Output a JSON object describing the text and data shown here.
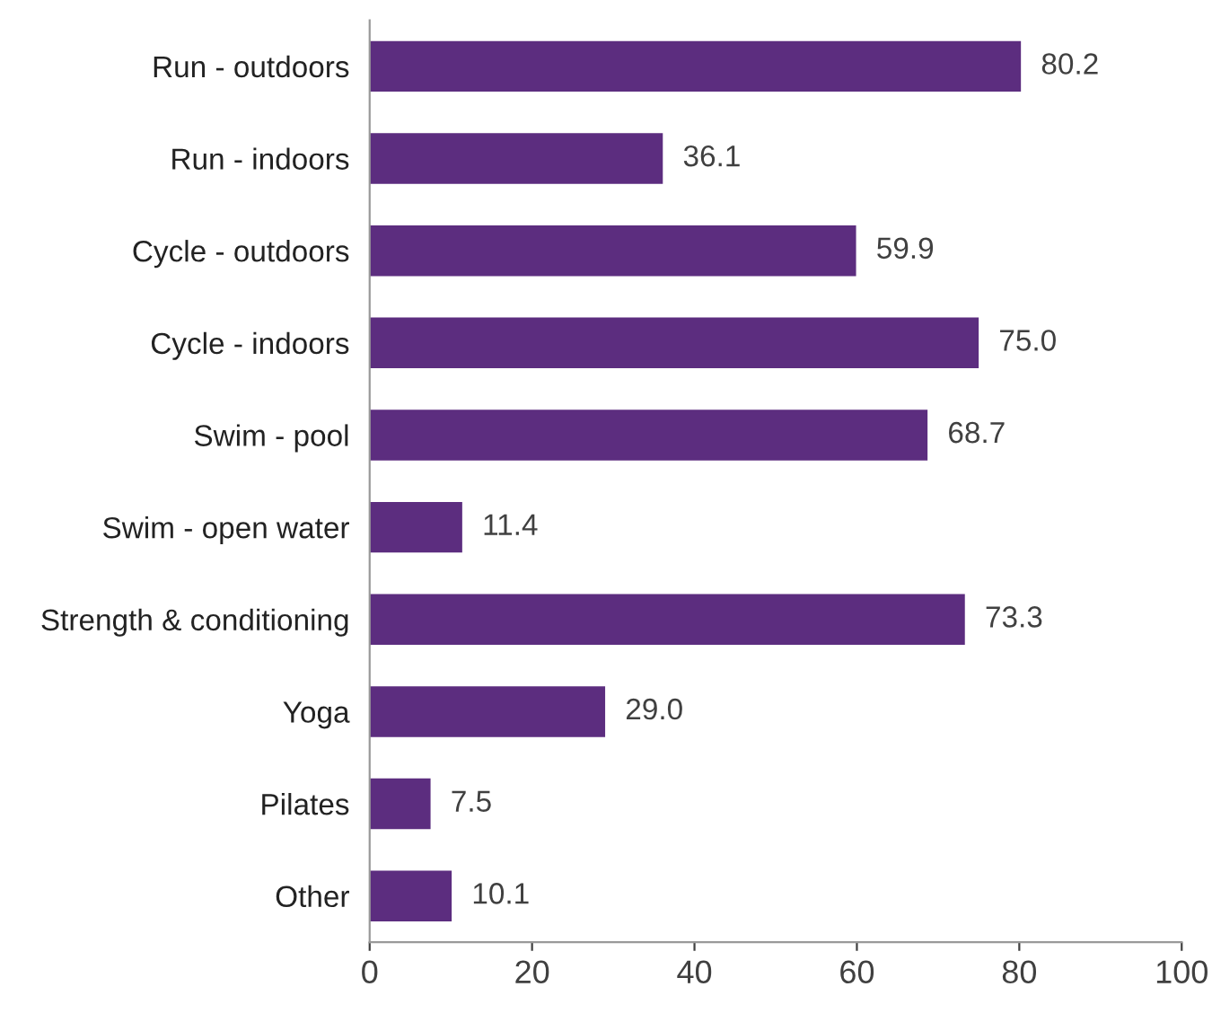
{
  "chart_data": {
    "type": "bar",
    "orientation": "horizontal",
    "categories": [
      "Run - outdoors",
      "Run - indoors",
      "Cycle - outdoors",
      "Cycle - indoors",
      "Swim - pool",
      "Swim - open water",
      "Strength & conditioning",
      "Yoga",
      "Pilates",
      "Other"
    ],
    "values": [
      80.2,
      36.1,
      59.9,
      75.0,
      68.7,
      11.4,
      73.3,
      29.0,
      7.5,
      10.1
    ],
    "value_labels": [
      "80.2",
      "36.1",
      "59.9",
      "75.0",
      "68.7",
      "11.4",
      "73.3",
      "29.0",
      "7.5",
      "10.1"
    ],
    "color": "#5c2d7f",
    "xlim": [
      0,
      100
    ],
    "xticks": [
      0,
      20,
      40,
      60,
      80,
      100
    ],
    "grid": false
  }
}
